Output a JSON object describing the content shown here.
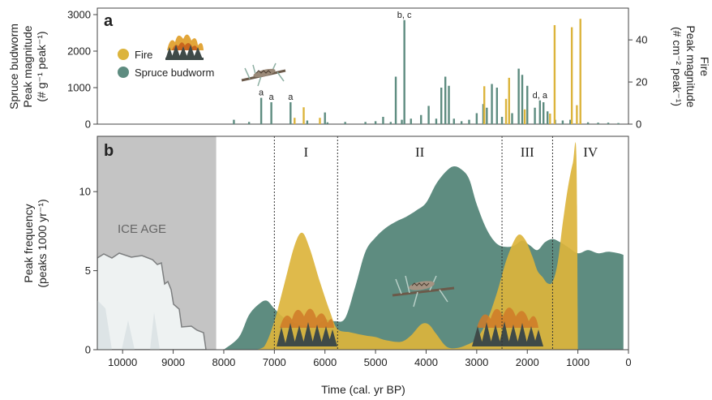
{
  "chart_data": [
    {
      "panel_label": "a",
      "type": "bar",
      "xlabel": "Time (cal. yr BP)",
      "xlim": [
        10500,
        0
      ],
      "y_left": {
        "label_line1": "Spruce budworm",
        "label_line2": "Peak magnitude",
        "label_line3": "(# g⁻¹ peak⁻¹)",
        "ylim": [
          0,
          3000
        ],
        "ticks": [
          0,
          1000,
          2000,
          3000
        ]
      },
      "y_right": {
        "label_line1": "Fire",
        "label_line2": "Peak magnitude",
        "label_line3": "(# cm⁻² peak⁻¹)",
        "ylim": [
          0,
          52
        ],
        "ticks": [
          0,
          20,
          40
        ]
      },
      "legend": {
        "position": "top-left",
        "entries": [
          "Fire",
          "Spruce budworm"
        ]
      },
      "colors": {
        "Fire": "#dcb43c",
        "Spruce budworm": "#5e8c80"
      },
      "series": [
        {
          "name": "Spruce budworm",
          "axis": "left",
          "points": [
            {
              "x": 7260,
              "y": 720
            },
            {
              "x": 7060,
              "y": 600
            },
            {
              "x": 6680,
              "y": 600
            },
            {
              "x": 6000,
              "y": 320
            },
            {
              "x": 7800,
              "y": 120
            },
            {
              "x": 7500,
              "y": 60
            },
            {
              "x": 6350,
              "y": 100
            },
            {
              "x": 5950,
              "y": 50
            },
            {
              "x": 5600,
              "y": 60
            },
            {
              "x": 5200,
              "y": 60
            },
            {
              "x": 5000,
              "y": 80
            },
            {
              "x": 4850,
              "y": 200
            },
            {
              "x": 4700,
              "y": 60
            },
            {
              "x": 4600,
              "y": 1300
            },
            {
              "x": 4480,
              "y": 120
            },
            {
              "x": 4430,
              "y": 2850
            },
            {
              "x": 4300,
              "y": 150
            },
            {
              "x": 4100,
              "y": 250
            },
            {
              "x": 3950,
              "y": 500
            },
            {
              "x": 3800,
              "y": 150
            },
            {
              "x": 3700,
              "y": 1000
            },
            {
              "x": 3620,
              "y": 1300
            },
            {
              "x": 3550,
              "y": 1050
            },
            {
              "x": 3450,
              "y": 150
            },
            {
              "x": 3300,
              "y": 80
            },
            {
              "x": 3150,
              "y": 120
            },
            {
              "x": 3000,
              "y": 300
            },
            {
              "x": 2870,
              "y": 550
            },
            {
              "x": 2800,
              "y": 450
            },
            {
              "x": 2700,
              "y": 1100
            },
            {
              "x": 2600,
              "y": 1000
            },
            {
              "x": 2500,
              "y": 200
            },
            {
              "x": 2300,
              "y": 300
            },
            {
              "x": 2170,
              "y": 1520
            },
            {
              "x": 2100,
              "y": 1350
            },
            {
              "x": 2000,
              "y": 1050
            },
            {
              "x": 1850,
              "y": 450
            },
            {
              "x": 1750,
              "y": 650
            },
            {
              "x": 1680,
              "y": 600
            },
            {
              "x": 1600,
              "y": 350
            },
            {
              "x": 1450,
              "y": 120
            },
            {
              "x": 1300,
              "y": 100
            },
            {
              "x": 1150,
              "y": 120
            },
            {
              "x": 950,
              "y": 80
            },
            {
              "x": 800,
              "y": 50
            },
            {
              "x": 600,
              "y": 40
            },
            {
              "x": 400,
              "y": 40
            },
            {
              "x": 200,
              "y": 30
            }
          ]
        },
        {
          "name": "Fire",
          "axis": "right",
          "points": [
            {
              "x": 6600,
              "y": 3
            },
            {
              "x": 6420,
              "y": 8
            },
            {
              "x": 6100,
              "y": 3
            },
            {
              "x": 2850,
              "y": 18
            },
            {
              "x": 2420,
              "y": 12
            },
            {
              "x": 2360,
              "y": 22
            },
            {
              "x": 2050,
              "y": 7
            },
            {
              "x": 1550,
              "y": 5
            },
            {
              "x": 1460,
              "y": 47
            },
            {
              "x": 1120,
              "y": 46
            },
            {
              "x": 1020,
              "y": 9
            },
            {
              "x": 950,
              "y": 50
            }
          ]
        }
      ],
      "annotations": [
        {
          "text": "a",
          "x": 7260,
          "y": 720
        },
        {
          "text": "a",
          "x": 7060,
          "y": 600
        },
        {
          "text": "a",
          "x": 6680,
          "y": 600
        },
        {
          "text": "b, c",
          "x": 4430,
          "y": 2850
        },
        {
          "text": "d, a",
          "x": 1750,
          "y": 650
        }
      ]
    },
    {
      "panel_label": "b",
      "type": "area",
      "xlabel": "Time (cal. yr BP)",
      "ylabel_line1": "Peak frequency",
      "ylabel_line2": "(peaks 1000 yr⁻¹)",
      "xlim": [
        10500,
        0
      ],
      "ylim": [
        0,
        13.5
      ],
      "x_ticks": [
        10000,
        9000,
        8000,
        7000,
        6000,
        5000,
        4000,
        3000,
        2000,
        1000,
        0
      ],
      "y_ticks": [
        0,
        5,
        10
      ],
      "grid": false,
      "colors": {
        "Spruce budworm": "#5e8c80",
        "Fire": "#dcb43c",
        "Ice age": "#c4c4c4"
      },
      "ice_age": {
        "label": "ICE AGE",
        "x_start": 10500,
        "x_end": 8150
      },
      "zones": [
        {
          "label": "I",
          "x_start": 7000,
          "x_end": 5750
        },
        {
          "label": "II",
          "x_start": 5750,
          "x_end": 2500
        },
        {
          "label": "III",
          "x_start": 2500,
          "x_end": 1500
        },
        {
          "label": "IV",
          "x_start": 1500,
          "x_end": 0
        }
      ],
      "series": [
        {
          "name": "Spruce budworm",
          "x": [
            8000,
            7700,
            7500,
            7300,
            7150,
            7000,
            6800,
            6500,
            6200,
            6000,
            5800,
            5600,
            5400,
            5200,
            5000,
            4800,
            4600,
            4400,
            4200,
            4000,
            3800,
            3600,
            3450,
            3300,
            3150,
            3000,
            2800,
            2600,
            2400,
            2250,
            2100,
            1950,
            1800,
            1650,
            1500,
            1350,
            1200,
            1000,
            800,
            600,
            400,
            200,
            100
          ],
          "y": [
            0,
            0.8,
            2.2,
            2.9,
            3.1,
            2.6,
            2.0,
            1.6,
            1.5,
            1.9,
            1.8,
            2.0,
            4.0,
            6.2,
            7.1,
            7.7,
            8.1,
            8.4,
            8.8,
            9.3,
            10.5,
            11.3,
            11.6,
            11.4,
            10.8,
            9.2,
            7.6,
            6.7,
            6.5,
            6.6,
            6.9,
            6.6,
            6.3,
            6.8,
            7.0,
            6.8,
            6.5,
            6.1,
            6.3,
            6.1,
            6.2,
            6.1,
            6.0
          ]
        },
        {
          "name": "Fire",
          "x": [
            7400,
            7200,
            7000,
            6800,
            6600,
            6450,
            6300,
            6100,
            5900,
            5750,
            5500,
            5200,
            5000,
            4800,
            4500,
            4300,
            4100,
            3950,
            3800,
            3600,
            3400,
            3200,
            3000,
            2800,
            2600,
            2400,
            2200,
            2050,
            1900,
            1800,
            1700,
            1600,
            1500,
            1400,
            1300,
            1200,
            1100,
            1030,
            1000
          ],
          "y": [
            0,
            0.2,
            1.8,
            4.2,
            6.6,
            7.4,
            6.4,
            4.3,
            2.4,
            1.3,
            1.1,
            0.9,
            0.8,
            0.6,
            0.5,
            0.9,
            1.6,
            1.6,
            1.0,
            0.2,
            0.1,
            0.3,
            0.7,
            1.8,
            3.6,
            5.8,
            7.2,
            7.0,
            5.9,
            5.0,
            4.6,
            4.2,
            4.3,
            5.5,
            8.0,
            10.2,
            11.8,
            12.3,
            0
          ]
        }
      ]
    }
  ]
}
